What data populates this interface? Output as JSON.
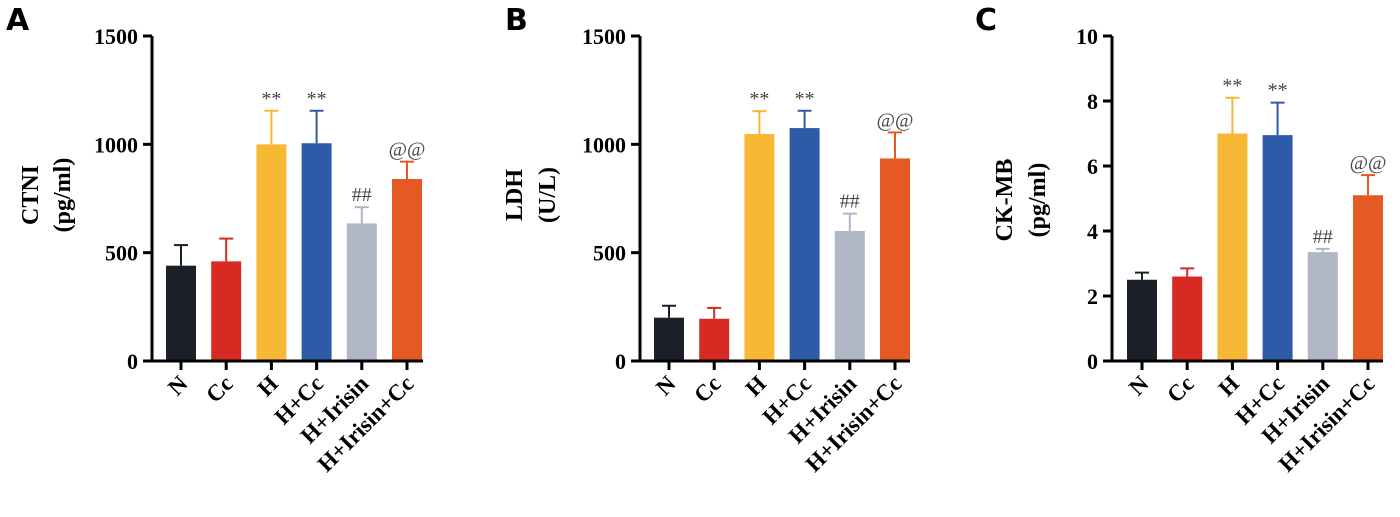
{
  "chart_data": [
    {
      "type": "bar",
      "panel_label": "A",
      "ylabel_lines": [
        "CTNI",
        "(pg/ml)"
      ],
      "categories": [
        "N",
        "Cc",
        "H",
        "H+Cc",
        "H+Irisin",
        "H+Irisin+Cc"
      ],
      "values": [
        440,
        460,
        1000,
        1005,
        635,
        840
      ],
      "errors": [
        95,
        105,
        155,
        150,
        75,
        80
      ],
      "significance": [
        "",
        "",
        "**",
        "**",
        "##",
        "@@"
      ],
      "colors": [
        "#1b1f27",
        "#d72a22",
        "#f7b835",
        "#2f5aa8",
        "#b1b6c7",
        "#e45a22"
      ],
      "ylim": [
        0,
        1500
      ],
      "yticks": [
        "0",
        "500",
        "1000",
        "1500"
      ],
      "ytick_values": [
        0,
        500,
        1000,
        1500
      ],
      "grid": false
    },
    {
      "type": "bar",
      "panel_label": "B",
      "ylabel_lines": [
        "LDH",
        "(U/L)"
      ],
      "categories": [
        "N",
        "Cc",
        "H",
        "H+Cc",
        "H+Irisin",
        "H+Irisin+Cc"
      ],
      "values": [
        200,
        195,
        1048,
        1075,
        600,
        935
      ],
      "errors": [
        55,
        50,
        105,
        80,
        80,
        120
      ],
      "significance": [
        "",
        "",
        "**",
        "**",
        "##",
        "@@"
      ],
      "colors": [
        "#1b1f27",
        "#d72a22",
        "#f7b835",
        "#2f5aa8",
        "#b1b6c7",
        "#e45a22"
      ],
      "ylim": [
        0,
        1500
      ],
      "yticks": [
        "0",
        "500",
        "1000",
        "1500"
      ],
      "ytick_values": [
        0,
        500,
        1000,
        1500
      ],
      "grid": false
    },
    {
      "type": "bar",
      "panel_label": "C",
      "ylabel_lines": [
        "CK-MB",
        "(pg/ml)"
      ],
      "categories": [
        "N",
        "Cc",
        "H",
        "H+Cc",
        "H+Irisin",
        "H+Irisin+Cc"
      ],
      "values": [
        2.5,
        2.6,
        7.0,
        6.95,
        3.35,
        5.1
      ],
      "errors": [
        0.22,
        0.25,
        1.1,
        1.0,
        0.1,
        0.62
      ],
      "significance": [
        "",
        "",
        "**",
        "**",
        "##",
        "@@"
      ],
      "colors": [
        "#1b1f27",
        "#d72a22",
        "#f7b835",
        "#2f5aa8",
        "#b1b6c7",
        "#e45a22"
      ],
      "ylim": [
        0,
        10
      ],
      "yticks": [
        "0",
        "2",
        "4",
        "6",
        "8",
        "10"
      ],
      "ytick_values": [
        0,
        2,
        4,
        6,
        8,
        10
      ],
      "grid": false
    }
  ]
}
